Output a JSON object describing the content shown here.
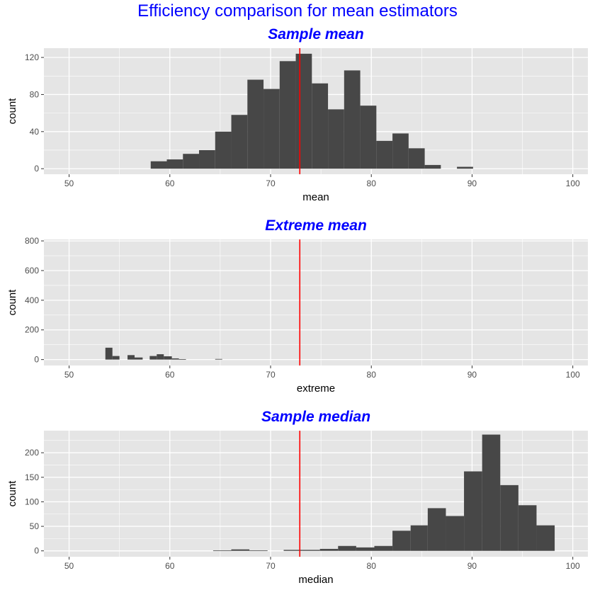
{
  "page_title": "Efficiency comparison for mean estimators",
  "colors": {
    "bar": "#474747",
    "reference_line": "#ff0000",
    "title": "#0000ff",
    "panel_background": "#e5e5e5",
    "grid": "#ffffff"
  },
  "chart_data": [
    {
      "type": "bar",
      "title": "Sample mean",
      "xlabel": "mean",
      "ylabel": "count",
      "xlim": [
        47.5,
        101.5
      ],
      "ylim": [
        -6,
        130
      ],
      "xticks": [
        50,
        60,
        70,
        80,
        90,
        100
      ],
      "xtick_labels": [
        "50",
        "60",
        "70",
        "80",
        "90",
        "100"
      ],
      "yticks": [
        0,
        40,
        80,
        120
      ],
      "ytick_labels": [
        "0",
        "40",
        "80",
        "120"
      ],
      "grid": true,
      "reference_line_x": 72.9,
      "bins": [
        {
          "x0": 58.1,
          "x1": 59.7,
          "count": 8
        },
        {
          "x0": 59.7,
          "x1": 61.3,
          "count": 10
        },
        {
          "x0": 61.3,
          "x1": 62.9,
          "count": 16
        },
        {
          "x0": 62.9,
          "x1": 64.5,
          "count": 20
        },
        {
          "x0": 64.5,
          "x1": 66.1,
          "count": 40
        },
        {
          "x0": 66.1,
          "x1": 67.7,
          "count": 58
        },
        {
          "x0": 67.7,
          "x1": 69.3,
          "count": 96
        },
        {
          "x0": 69.3,
          "x1": 70.9,
          "count": 86
        },
        {
          "x0": 70.9,
          "x1": 72.5,
          "count": 116
        },
        {
          "x0": 72.5,
          "x1": 74.1,
          "count": 124
        },
        {
          "x0": 74.1,
          "x1": 75.7,
          "count": 92
        },
        {
          "x0": 75.7,
          "x1": 77.3,
          "count": 64
        },
        {
          "x0": 77.3,
          "x1": 78.9,
          "count": 106
        },
        {
          "x0": 78.9,
          "x1": 80.5,
          "count": 68
        },
        {
          "x0": 80.5,
          "x1": 82.1,
          "count": 30
        },
        {
          "x0": 82.1,
          "x1": 83.7,
          "count": 38
        },
        {
          "x0": 83.7,
          "x1": 85.3,
          "count": 22
        },
        {
          "x0": 85.3,
          "x1": 86.9,
          "count": 4
        },
        {
          "x0": 88.5,
          "x1": 90.1,
          "count": 2
        }
      ]
    },
    {
      "type": "bar",
      "title": "Extreme mean",
      "xlabel": "extreme",
      "ylabel": "count",
      "xlim": [
        47.5,
        101.5
      ],
      "ylim": [
        -40,
        810
      ],
      "xticks": [
        50,
        60,
        70,
        80,
        90,
        100
      ],
      "xtick_labels": [
        "50",
        "60",
        "70",
        "80",
        "90",
        "100"
      ],
      "yticks": [
        0,
        200,
        400,
        600,
        800
      ],
      "ytick_labels": [
        "0",
        "200",
        "400",
        "600",
        "800"
      ],
      "grid": true,
      "reference_line_x": 72.9,
      "bins": [
        {
          "x0": 53.6,
          "x1": 54.3,
          "count": 80
        },
        {
          "x0": 54.3,
          "x1": 55.0,
          "count": 24
        },
        {
          "x0": 55.8,
          "x1": 56.5,
          "count": 30
        },
        {
          "x0": 56.5,
          "x1": 57.3,
          "count": 14
        },
        {
          "x0": 58.0,
          "x1": 58.7,
          "count": 24
        },
        {
          "x0": 58.7,
          "x1": 59.4,
          "count": 36
        },
        {
          "x0": 59.4,
          "x1": 60.2,
          "count": 22
        },
        {
          "x0": 60.2,
          "x1": 60.9,
          "count": 8
        },
        {
          "x0": 60.9,
          "x1": 61.6,
          "count": 3
        },
        {
          "x0": 64.5,
          "x1": 65.2,
          "count": 4
        }
      ]
    },
    {
      "type": "bar",
      "title": "Sample median",
      "xlabel": "median",
      "ylabel": "count",
      "xlim": [
        47.5,
        101.5
      ],
      "ylim": [
        -12,
        245
      ],
      "xticks": [
        50,
        60,
        70,
        80,
        90,
        100
      ],
      "xtick_labels": [
        "50",
        "60",
        "70",
        "80",
        "90",
        "100"
      ],
      "yticks": [
        0,
        50,
        100,
        150,
        200
      ],
      "ytick_labels": [
        "0",
        "50",
        "100",
        "150",
        "200"
      ],
      "grid": true,
      "reference_line_x": 72.9,
      "bins": [
        {
          "x0": 64.3,
          "x1": 66.1,
          "count": 1
        },
        {
          "x0": 66.1,
          "x1": 67.9,
          "count": 3
        },
        {
          "x0": 67.9,
          "x1": 69.7,
          "count": 1
        },
        {
          "x0": 71.3,
          "x1": 73.1,
          "count": 2
        },
        {
          "x0": 73.1,
          "x1": 74.9,
          "count": 2
        },
        {
          "x0": 74.9,
          "x1": 76.7,
          "count": 4
        },
        {
          "x0": 76.7,
          "x1": 78.5,
          "count": 10
        },
        {
          "x0": 78.5,
          "x1": 80.3,
          "count": 7
        },
        {
          "x0": 80.3,
          "x1": 82.1,
          "count": 10
        },
        {
          "x0": 82.1,
          "x1": 83.9,
          "count": 41
        },
        {
          "x0": 83.9,
          "x1": 85.6,
          "count": 52
        },
        {
          "x0": 85.6,
          "x1": 87.4,
          "count": 87
        },
        {
          "x0": 87.4,
          "x1": 89.2,
          "count": 71
        },
        {
          "x0": 89.2,
          "x1": 91.0,
          "count": 162
        },
        {
          "x0": 91.0,
          "x1": 92.8,
          "count": 237
        },
        {
          "x0": 92.8,
          "x1": 94.6,
          "count": 134
        },
        {
          "x0": 94.6,
          "x1": 96.4,
          "count": 93
        },
        {
          "x0": 96.4,
          "x1": 98.2,
          "count": 52
        }
      ]
    }
  ]
}
